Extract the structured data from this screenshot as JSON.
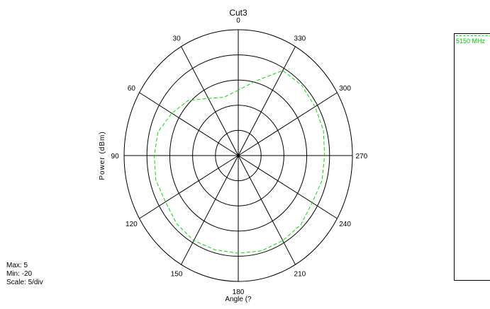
{
  "chart_data": {
    "type": "polar",
    "title": "Cut3",
    "xlabel": "Angle  (?",
    "ylabel": "Power  (dBm)",
    "angle_ticks": [
      0,
      30,
      60,
      90,
      120,
      150,
      180,
      210,
      240,
      270,
      300,
      330
    ],
    "angle_direction": "counterclockwise",
    "zero_angle_position": "top",
    "radial_range": [
      -20,
      5
    ],
    "radial_step": 5,
    "grid": true,
    "legend_position": "right",
    "series": [
      {
        "name": "5150 MHz",
        "color": "#00e000",
        "line_style": "dashed",
        "angles": [
          0,
          15,
          30,
          45,
          60,
          75,
          90,
          105,
          120,
          135,
          150,
          165,
          180,
          195,
          210,
          225,
          240,
          255,
          270,
          285,
          300,
          315,
          330,
          345
        ],
        "values": [
          -7,
          -8,
          -6.9,
          -4.5,
          -3.2,
          -1.8,
          -1.6,
          -1.3,
          -1.6,
          -0.9,
          -0.5,
          -0.6,
          -0.6,
          -0.4,
          -0.5,
          -0.6,
          -1.3,
          -1.0,
          -1.1,
          -0.7,
          -0.6,
          -0.3,
          -0.5,
          -4.6
        ]
      }
    ]
  },
  "stats": {
    "max": "Max: 5",
    "min": "Min: -20",
    "scale": "Scale: 5/div"
  }
}
